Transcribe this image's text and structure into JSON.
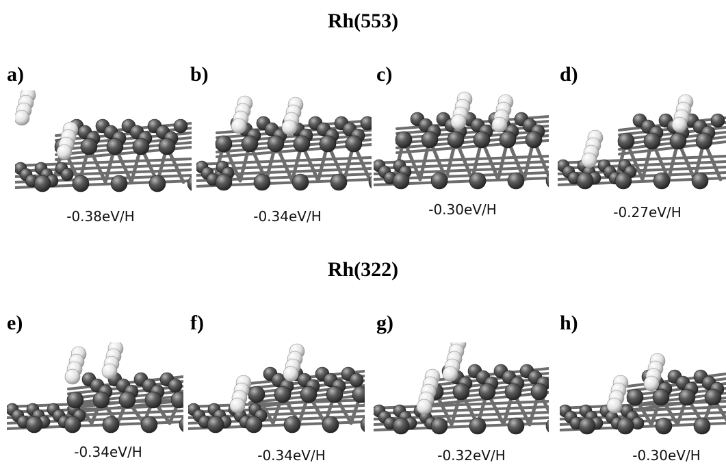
{
  "rows": [
    {
      "title": "Rh(553)",
      "panels": [
        {
          "label": "a)",
          "energy": "-0.38eV/H"
        },
        {
          "label": "b)",
          "energy": "-0.34eV/H"
        },
        {
          "label": "c)",
          "energy": "-0.30eV/H"
        },
        {
          "label": "d)",
          "energy": "-0.27eV/H"
        }
      ]
    },
    {
      "title": "Rh(322)",
      "panels": [
        {
          "label": "e)",
          "energy": "-0.34eV/H"
        },
        {
          "label": "f)",
          "energy": "-0.34eV/H"
        },
        {
          "label": "g)",
          "energy": "-0.32eV/H"
        },
        {
          "label": "h)",
          "energy": "-0.30eV/H"
        }
      ]
    }
  ]
}
